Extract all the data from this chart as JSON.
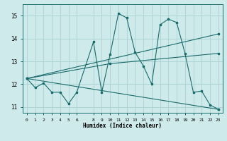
{
  "xlabel": "Humidex (Indice chaleur)",
  "background_color": "#ceeaeb",
  "grid_color": "#afd5d6",
  "line_color": "#1a6b6b",
  "xlim": [
    -0.5,
    23.5
  ],
  "ylim": [
    10.75,
    15.5
  ],
  "yticks": [
    11,
    12,
    13,
    14,
    15
  ],
  "xticks": [
    0,
    1,
    2,
    3,
    4,
    5,
    6,
    8,
    9,
    10,
    11,
    12,
    13,
    14,
    15,
    16,
    17,
    18,
    19,
    20,
    21,
    22,
    23
  ],
  "series1_x": [
    0,
    1,
    2,
    3,
    4,
    5,
    6,
    8,
    9,
    10,
    11,
    12,
    13,
    14,
    15,
    16,
    17,
    18,
    19,
    20,
    21,
    22,
    23
  ],
  "series1_y": [
    12.25,
    11.85,
    12.05,
    11.65,
    11.65,
    11.15,
    11.65,
    13.85,
    11.65,
    13.3,
    15.1,
    14.9,
    13.4,
    12.8,
    12.0,
    14.6,
    14.85,
    14.7,
    13.35,
    11.65,
    11.7,
    11.1,
    10.9
  ],
  "series2_x": [
    0,
    23
  ],
  "series2_y": [
    12.25,
    14.2
  ],
  "series3_x": [
    0,
    23
  ],
  "series3_y": [
    12.25,
    10.9
  ],
  "series4_x": [
    0,
    10,
    23
  ],
  "series4_y": [
    12.25,
    12.9,
    13.35
  ]
}
